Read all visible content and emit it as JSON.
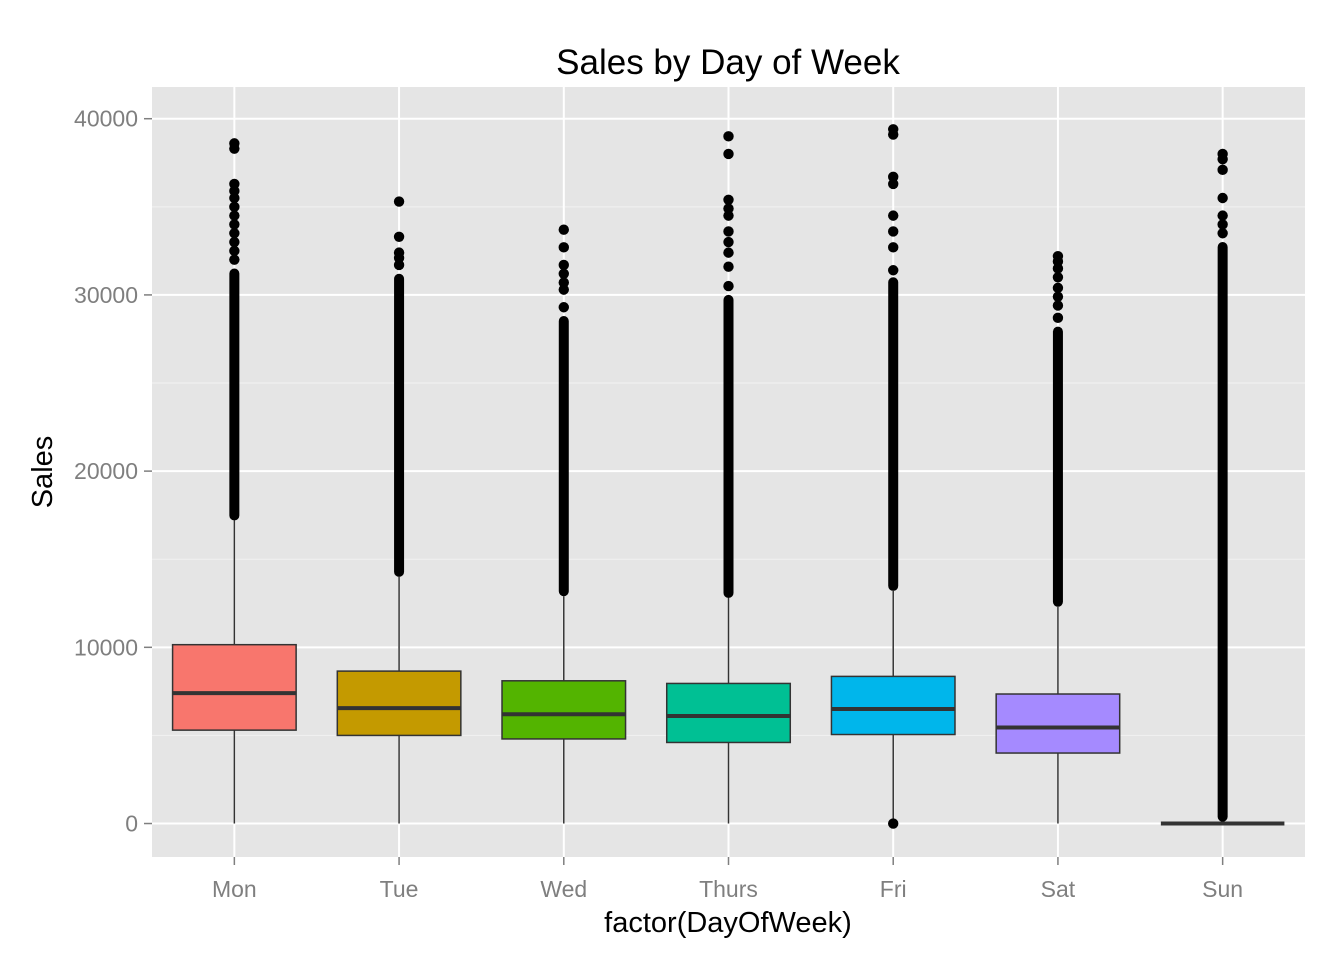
{
  "chart_data": {
    "type": "box",
    "title": "Sales by Day of Week",
    "xlabel": "factor(DayOfWeek)",
    "ylabel": "Sales",
    "ylim": [
      -1900,
      41800
    ],
    "yticks": [
      0,
      10000,
      20000,
      30000,
      40000
    ],
    "ytick_labels": [
      "0",
      "10000",
      "20000",
      "30000",
      "40000"
    ],
    "grid": true,
    "legend": "none",
    "categories": [
      "Mon",
      "Tue",
      "Wed",
      "Thurs",
      "Fri",
      "Sat",
      "Sun"
    ],
    "boxes": [
      {
        "category": "Mon",
        "color": "#F8766D",
        "whisker_low": 0,
        "q1": 5300,
        "median": 7400,
        "q3": 10150,
        "whisker_high": 17200,
        "outliers_dense_from": 17200,
        "outliers_dense_to": 31500,
        "outliers": [
          32000,
          32500,
          33000,
          33500,
          34000,
          34500,
          35000,
          35500,
          35900,
          36300,
          38300,
          38600
        ]
      },
      {
        "category": "Tue",
        "color": "#C49A00",
        "whisker_low": 0,
        "q1": 5000,
        "median": 6550,
        "q3": 8650,
        "whisker_high": 14000,
        "outliers_dense_from": 14000,
        "outliers_dense_to": 31200,
        "outliers": [
          31700,
          32100,
          32400,
          33300,
          35300
        ]
      },
      {
        "category": "Wed",
        "color": "#53B400",
        "whisker_low": 0,
        "q1": 4800,
        "median": 6200,
        "q3": 8100,
        "whisker_high": 12900,
        "outliers_dense_from": 12900,
        "outliers_dense_to": 28800,
        "outliers": [
          29300,
          30300,
          30700,
          31200,
          31700,
          32700,
          33700
        ]
      },
      {
        "category": "Thurs",
        "color": "#00C094",
        "whisker_low": 0,
        "q1": 4600,
        "median": 6100,
        "q3": 7950,
        "whisker_high": 12800,
        "outliers_dense_from": 12800,
        "outliers_dense_to": 30000,
        "outliers": [
          30500,
          31600,
          32400,
          33000,
          33600,
          34500,
          34900,
          35400,
          38000,
          39000
        ]
      },
      {
        "category": "Fri",
        "color": "#00B6EB",
        "whisker_low": 0,
        "q1": 5050,
        "median": 6500,
        "q3": 8350,
        "whisker_high": 13200,
        "outliers_dense_from": 13200,
        "outliers_dense_to": 31000,
        "outliers": [
          0,
          31400,
          32700,
          33600,
          34500,
          36300,
          36700,
          39100,
          39400
        ]
      },
      {
        "category": "Sat",
        "color": "#A58AFF",
        "whisker_low": 0,
        "q1": 4000,
        "median": 5450,
        "q3": 7350,
        "whisker_high": 12300,
        "outliers_dense_from": 12300,
        "outliers_dense_to": 28200,
        "outliers": [
          28700,
          29400,
          29900,
          30400,
          31000,
          31500,
          31900,
          32200
        ]
      },
      {
        "category": "Sun",
        "color": "#FB61D7",
        "whisker_low": 0,
        "q1": 0,
        "median": 0,
        "q3": 0,
        "whisker_high": 0,
        "outliers_dense_from": 100,
        "outliers_dense_to": 33000,
        "outliers": [
          33500,
          34000,
          34500,
          35500,
          37100,
          37700,
          38000
        ]
      }
    ]
  }
}
